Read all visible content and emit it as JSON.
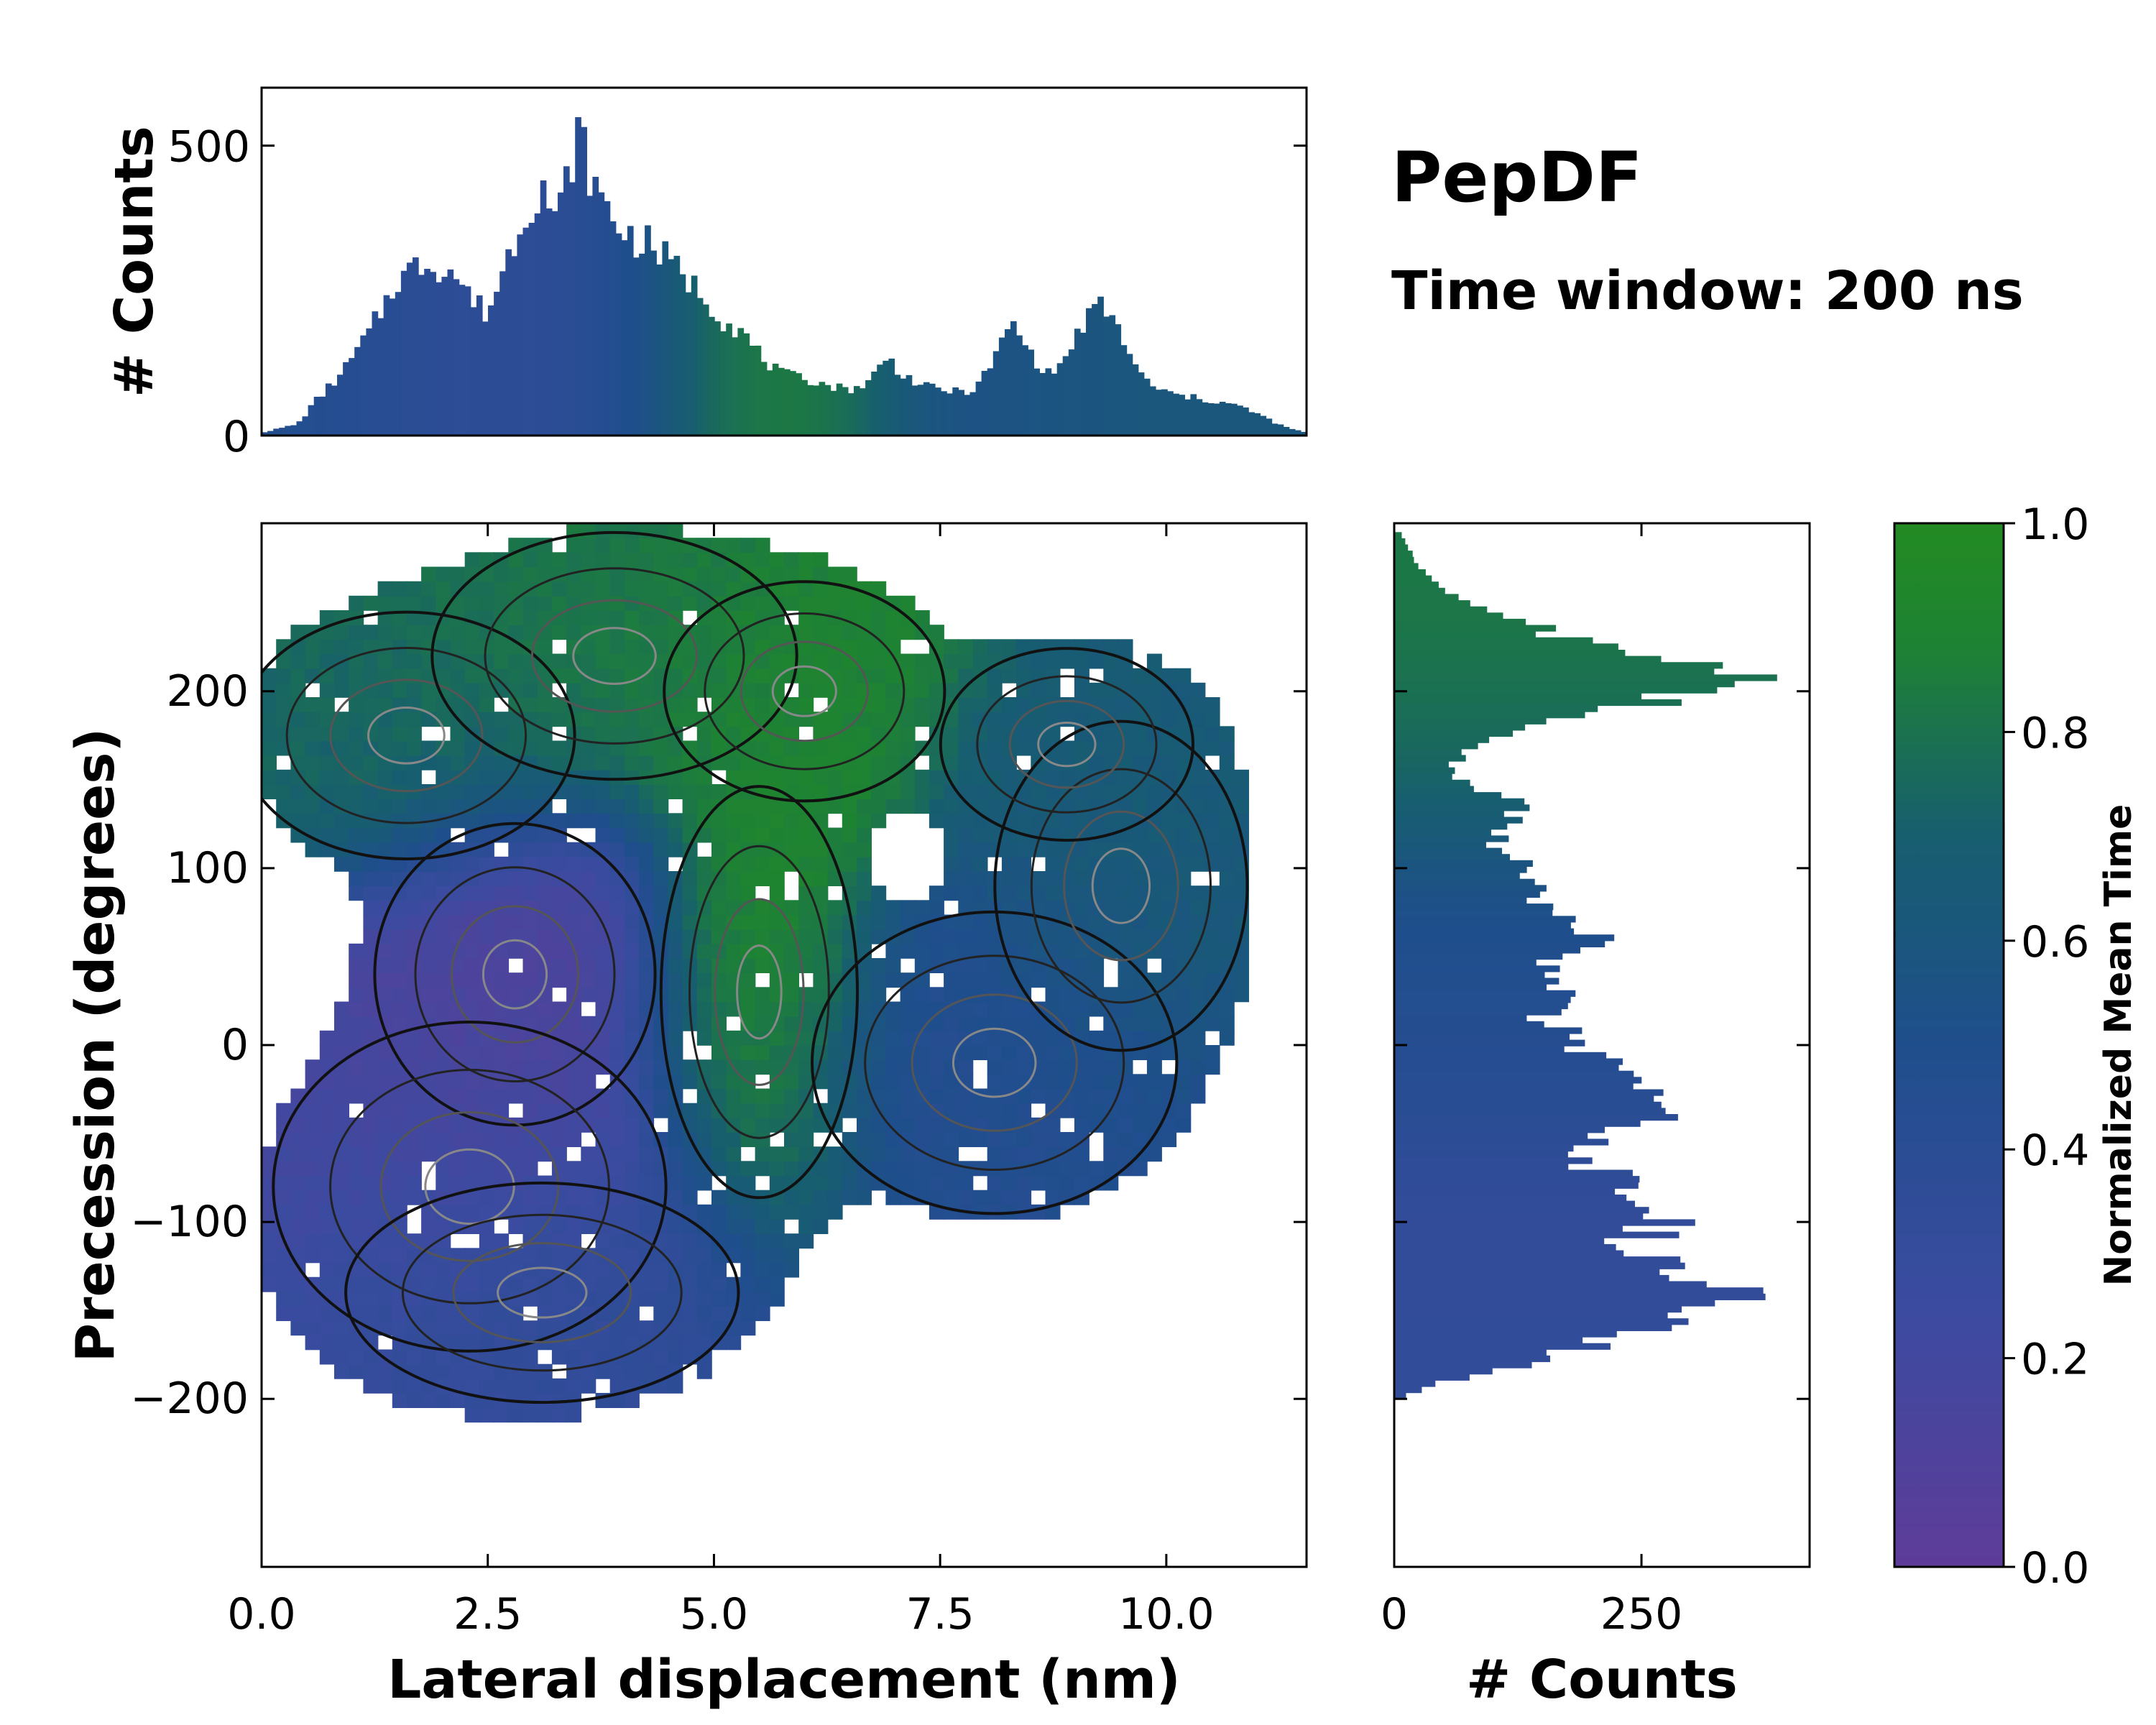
{
  "chart_data": [
    {
      "id": "top-histogram",
      "type": "bar",
      "title": "",
      "xlabel": "",
      "ylabel": "# Counts",
      "xlim": [
        0,
        11.55
      ],
      "ylim": [
        0,
        600
      ],
      "yticks": [
        0,
        500
      ],
      "profile_x": [
        0.0,
        0.4,
        0.6,
        0.9,
        1.2,
        1.5,
        1.8,
        2.1,
        2.35,
        2.5,
        2.7,
        2.9,
        3.1,
        3.25,
        3.4,
        3.5,
        3.7,
        3.9,
        4.1,
        4.3,
        4.5,
        4.7,
        4.9,
        5.1,
        5.3,
        5.5,
        5.7,
        5.9,
        6.1,
        6.3,
        6.5,
        6.7,
        6.9,
        7.1,
        7.3,
        7.5,
        7.7,
        7.9,
        8.1,
        8.3,
        8.5,
        8.7,
        8.9,
        9.1,
        9.3,
        9.5,
        9.7,
        9.9,
        10.1,
        10.3,
        10.5,
        10.7,
        10.9,
        11.1,
        11.3,
        11.55
      ],
      "profile_counts": [
        5,
        20,
        60,
        110,
        180,
        270,
        300,
        285,
        230,
        210,
        300,
        380,
        440,
        360,
        460,
        520,
        420,
        370,
        340,
        330,
        300,
        270,
        240,
        200,
        180,
        140,
        110,
        100,
        95,
        85,
        80,
        90,
        135,
        105,
        85,
        80,
        75,
        80,
        135,
        195,
        140,
        105,
        135,
        200,
        225,
        175,
        105,
        80,
        70,
        65,
        60,
        55,
        45,
        30,
        15,
        5
      ]
    },
    {
      "id": "main-heatmap",
      "type": "heatmap",
      "title": "",
      "xlabel": "Lateral displacement (nm)",
      "ylabel": "Precession (degrees)",
      "xlim": [
        0,
        11.55
      ],
      "ylim": [
        -295,
        295
      ],
      "xticks": [
        0.0,
        2.5,
        5.0,
        7.5,
        10.0
      ],
      "xtick_labels": [
        "0.0",
        "2.5",
        "5.0",
        "7.5",
        "10.0"
      ],
      "yticks": [
        -200,
        -100,
        0,
        100,
        200
      ],
      "ytick_labels": [
        "−200",
        "−100",
        "0",
        "100",
        "200"
      ],
      "regions": [
        {
          "name": "top-arc-left",
          "center": [
            1.6,
            175
          ],
          "spread": [
            1.2,
            45
          ],
          "time": 0.74
        },
        {
          "name": "top-arc-mid",
          "center": [
            3.9,
            220
          ],
          "spread": [
            1.3,
            45
          ],
          "time": 0.82
        },
        {
          "name": "top-arc-right",
          "center": [
            6.0,
            200
          ],
          "spread": [
            1.0,
            40
          ],
          "time": 0.9
        },
        {
          "name": "connector",
          "center": [
            5.5,
            30
          ],
          "spread": [
            0.7,
            75
          ],
          "time": 0.92
        },
        {
          "name": "purple-center",
          "center": [
            2.8,
            40
          ],
          "spread": [
            1.0,
            55
          ],
          "time": 0.12
        },
        {
          "name": "purple-lower",
          "center": [
            2.3,
            -80
          ],
          "spread": [
            1.4,
            60
          ],
          "time": 0.2
        },
        {
          "name": "blue-lower",
          "center": [
            3.1,
            -140
          ],
          "spread": [
            1.4,
            40
          ],
          "time": 0.38
        },
        {
          "name": "right-blue",
          "center": [
            8.1,
            -10
          ],
          "spread": [
            1.3,
            55
          ],
          "time": 0.46
        },
        {
          "name": "right-teal",
          "center": [
            9.5,
            90
          ],
          "spread": [
            0.9,
            60
          ],
          "time": 0.64
        },
        {
          "name": "right-top",
          "center": [
            8.9,
            170
          ],
          "spread": [
            0.9,
            35
          ],
          "time": 0.66
        }
      ]
    },
    {
      "id": "side-histogram",
      "type": "bar",
      "title": "",
      "xlabel": "# Counts",
      "ylabel": "",
      "xlim": [
        0,
        420
      ],
      "ylim": [
        -295,
        295
      ],
      "xticks": [
        0,
        250
      ],
      "profile_y": [
        -200,
        -190,
        -180,
        -170,
        -160,
        -150,
        -140,
        -130,
        -120,
        -110,
        -100,
        -90,
        -80,
        -70,
        -60,
        -50,
        -40,
        -30,
        -20,
        -10,
        0,
        10,
        20,
        30,
        40,
        50,
        60,
        70,
        80,
        90,
        100,
        110,
        120,
        130,
        140,
        150,
        160,
        170,
        180,
        190,
        200,
        210,
        220,
        230,
        240,
        250,
        260,
        270,
        280,
        290
      ],
      "profile_counts": [
        5,
        50,
        130,
        200,
        260,
        330,
        390,
        310,
        260,
        240,
        280,
        220,
        260,
        200,
        180,
        230,
        300,
        270,
        250,
        210,
        190,
        160,
        150,
        170,
        140,
        180,
        200,
        170,
        160,
        140,
        130,
        110,
        100,
        130,
        110,
        70,
        60,
        80,
        140,
        220,
        320,
        380,
        260,
        180,
        120,
        70,
        40,
        25,
        15,
        5
      ]
    },
    {
      "id": "colorbar",
      "type": "colorbar",
      "label": "Normalized Mean Time",
      "range": [
        0.0,
        1.0
      ],
      "ticks": [
        "0.0",
        "0.2",
        "0.4",
        "0.6",
        "0.8",
        "1.0"
      ],
      "stops": [
        "#5e3c99",
        "#3b4ba0",
        "#1f4e8c",
        "#175e6f",
        "#1e8234",
        "#238b22"
      ]
    }
  ],
  "annotations": {
    "title": "PepDF",
    "subtitle": "Time window: 200 ns"
  }
}
